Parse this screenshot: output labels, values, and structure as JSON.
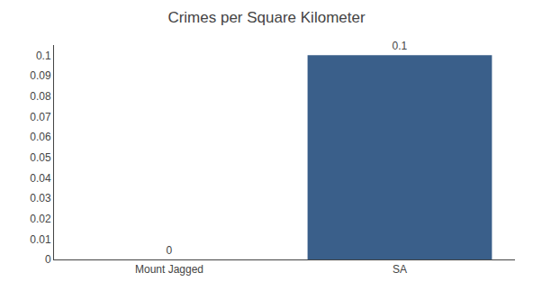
{
  "chart_data": {
    "type": "bar",
    "title": "Crimes per Square Kilometer",
    "categories": [
      "Mount Jagged",
      "SA"
    ],
    "values": [
      0,
      0.1
    ],
    "color": "#3a5f8a",
    "ylim": [
      0,
      0.105
    ],
    "yticks": [
      0,
      0.01,
      0.02,
      0.03,
      0.04,
      0.05,
      0.06,
      0.07,
      0.08,
      0.09,
      0.1
    ],
    "grid": false,
    "data_labels": true
  }
}
